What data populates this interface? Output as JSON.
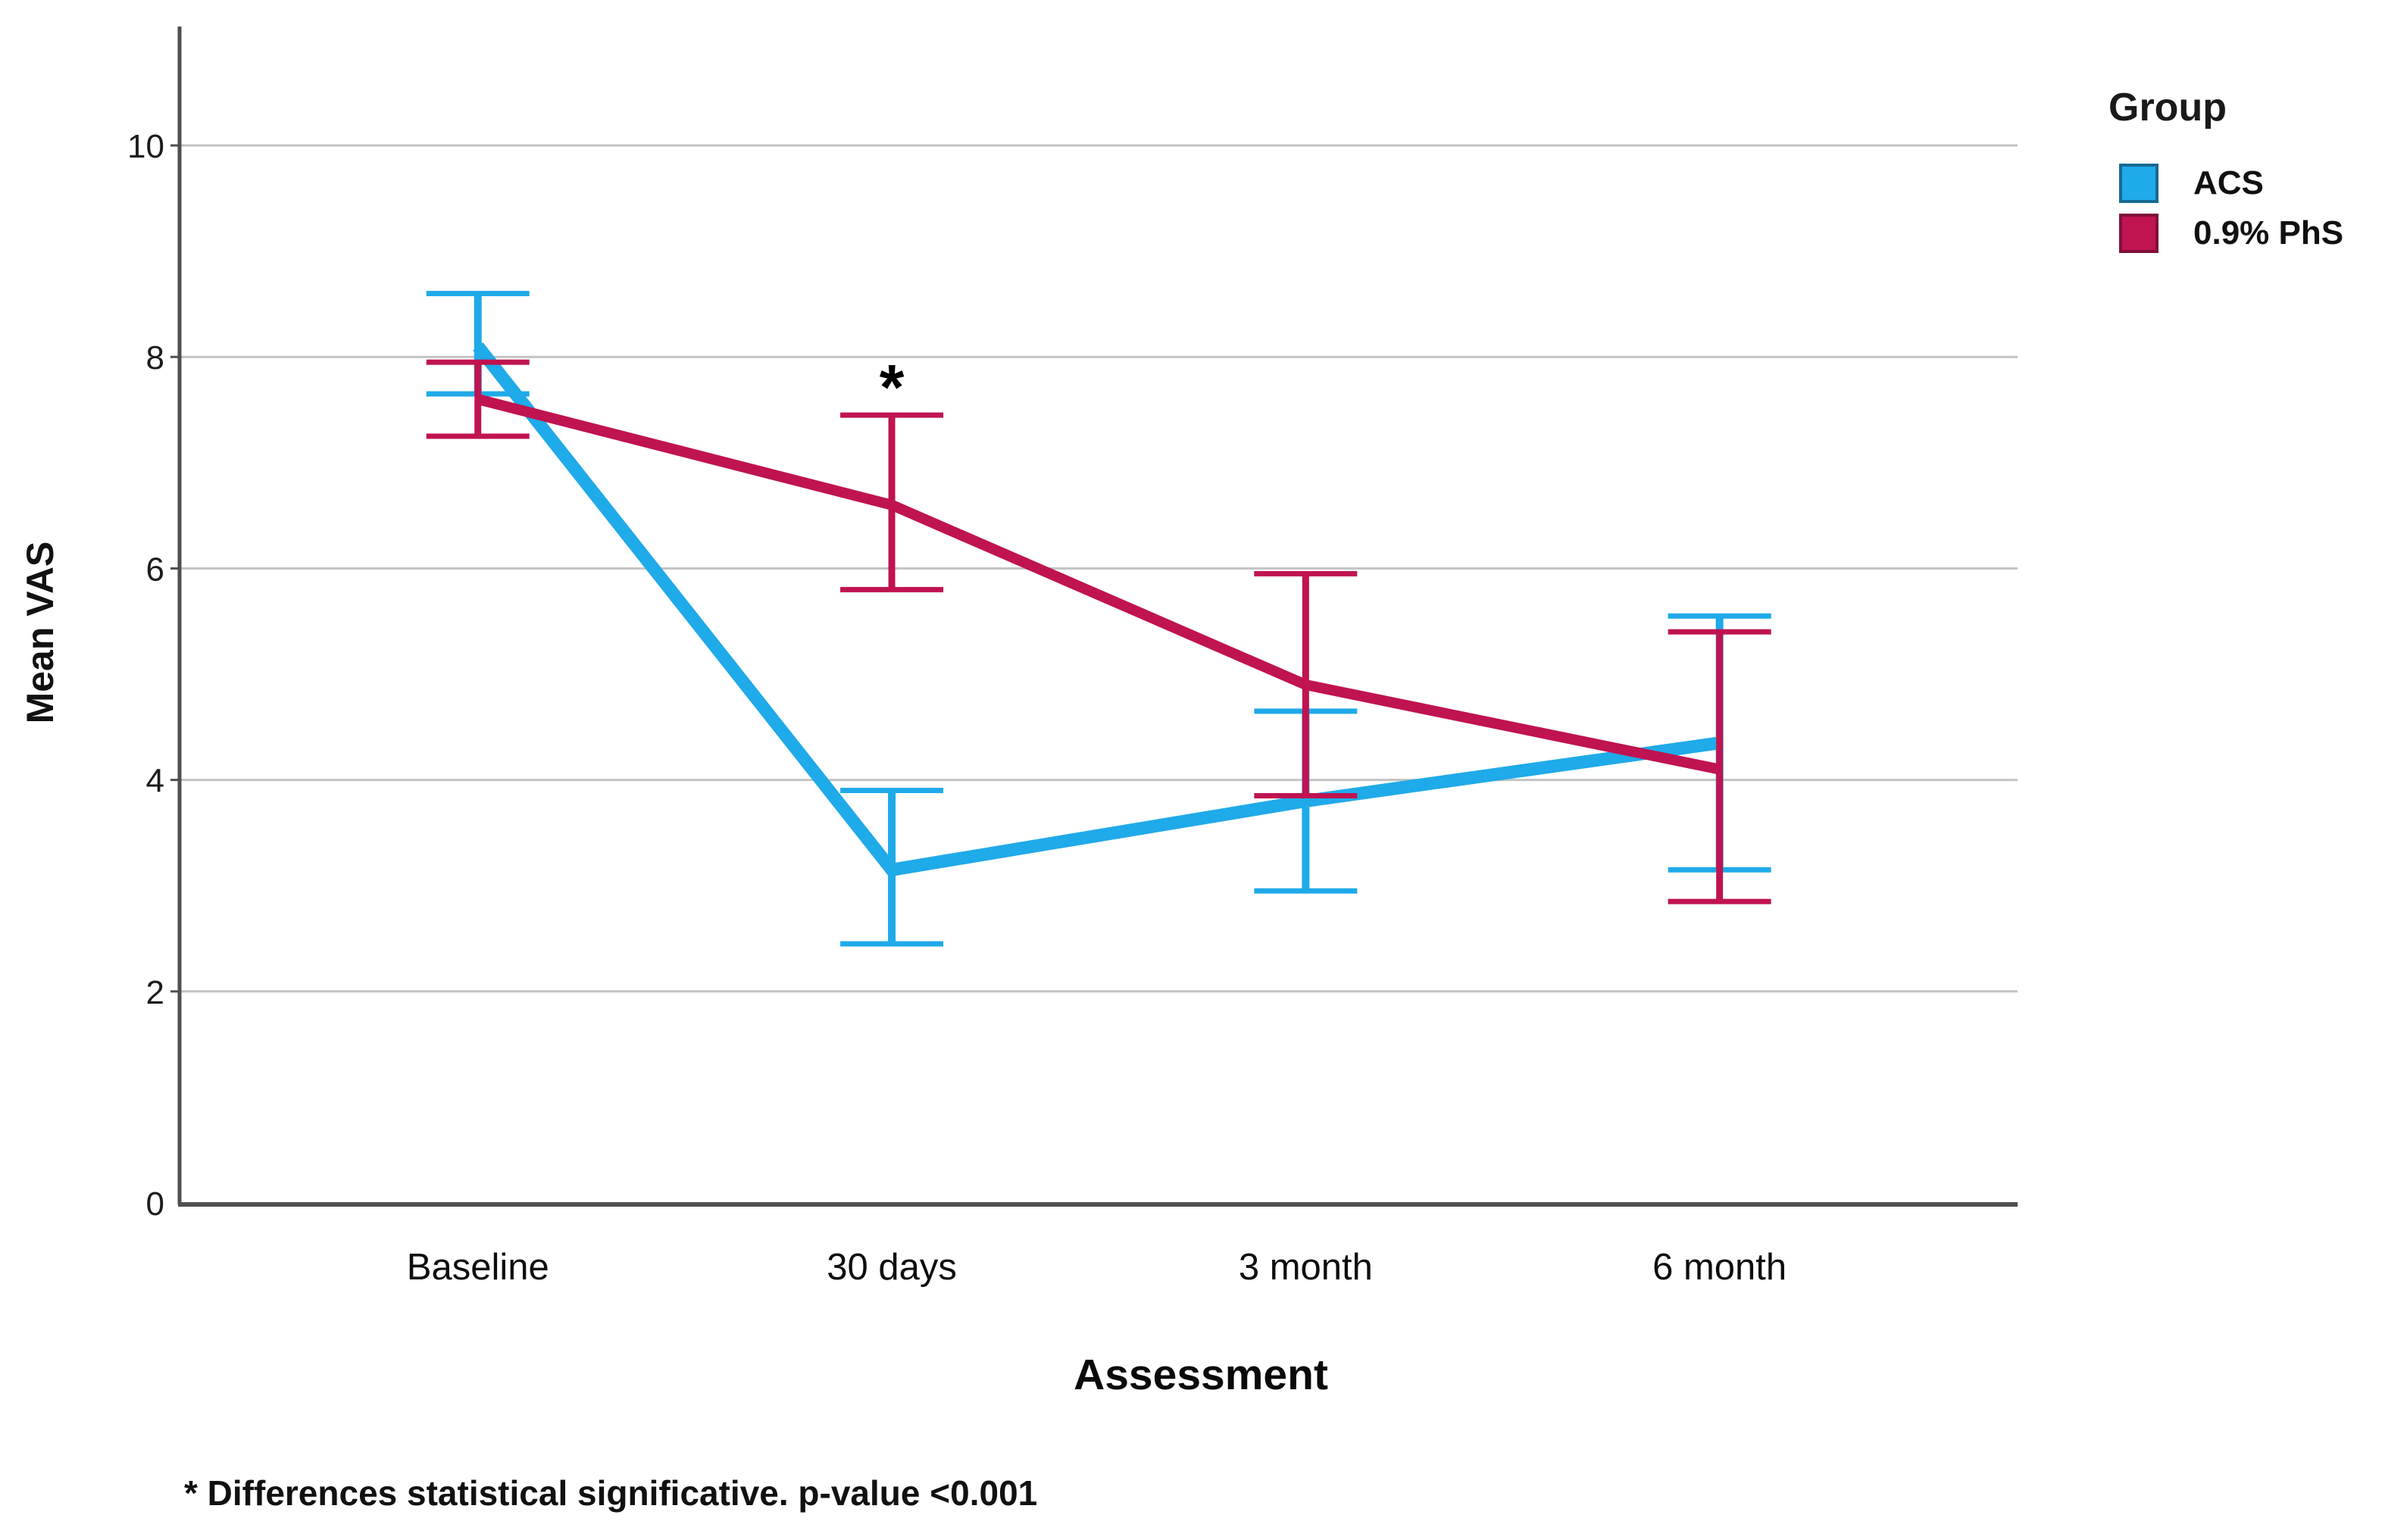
{
  "legend": {
    "title": "Group",
    "items": [
      {
        "label": "ACS"
      },
      {
        "label": "0.9% PhS"
      }
    ]
  },
  "footnote": {
    "text": "* Differences statistical significative. p-value <0.001"
  },
  "colors": {
    "acs_blue": "#1FAAE9",
    "acs_blue_border": "#166A93",
    "phs_crimson": "#C01351",
    "phs_crimson_border": "#80103A",
    "gridline": "#C3C3C3",
    "axis": "#4F4F4F",
    "text": "#111111"
  },
  "chart_data": {
    "type": "line",
    "title": "",
    "xlabel": "Assessment",
    "ylabel": "Mean VAS",
    "categories": [
      "Baseline",
      "30 days",
      "3 month",
      "6 month"
    ],
    "ylim": [
      0,
      11.1
    ],
    "yticks": [
      0,
      2,
      4,
      6,
      8,
      10
    ],
    "grid": true,
    "legend_position": "top-right",
    "error_bars": true,
    "series": [
      {
        "name": "ACS",
        "color": "#1FAAE9",
        "values": [
          8.1,
          3.15,
          3.8,
          4.35
        ],
        "err_low": [
          7.65,
          2.45,
          2.95,
          3.15
        ],
        "err_high": [
          8.6,
          3.9,
          4.65,
          5.55
        ]
      },
      {
        "name": "0.9% PhS",
        "color": "#C01351",
        "values": [
          7.6,
          6.6,
          4.9,
          4.1
        ],
        "err_low": [
          7.25,
          5.8,
          3.85,
          2.85
        ],
        "err_high": [
          7.95,
          7.45,
          5.95,
          5.4
        ]
      }
    ],
    "annotations": [
      {
        "text": "*",
        "category": "30 days",
        "category_index": 1,
        "value": 7.85
      }
    ]
  }
}
